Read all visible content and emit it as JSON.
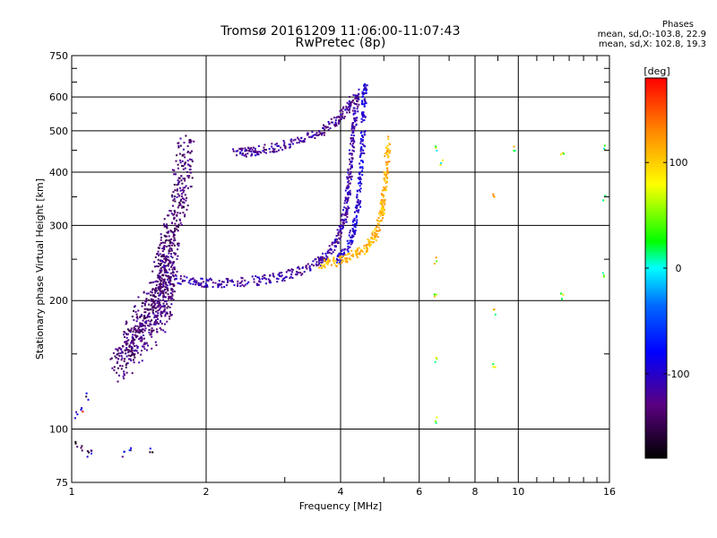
{
  "chart_data": {
    "type": "scatter",
    "title": "Tromsø 20161209 11:06:00-11:07:43",
    "subtitle": "RwPretec (8p)",
    "xlabel": "Frequency [MHz]",
    "ylabel": "Stationary phase Virtual Height [km]",
    "x_scale": "log",
    "y_scale": "log",
    "xlim": [
      1,
      16
    ],
    "ylim": [
      75,
      750
    ],
    "x_ticks": [
      1,
      2,
      4,
      6,
      8,
      10,
      16
    ],
    "y_ticks": [
      75,
      100,
      200,
      300,
      400,
      500,
      600,
      750
    ],
    "grid": true,
    "colorbar": {
      "label": "[deg]",
      "range": [
        -180,
        180
      ],
      "ticks": [
        100,
        0,
        -100
      ]
    },
    "stats_box": {
      "title": "Phases",
      "line_o": "mean, sd,O:-103.8, 22.9",
      "line_x": "mean, sd,X: 102.8, 19.3"
    },
    "traces": [
      {
        "desc": "lower E-F rise",
        "phase": -135,
        "points": [
          [
            1.25,
            140
          ],
          [
            1.3,
            150
          ],
          [
            1.35,
            160
          ],
          [
            1.4,
            170
          ],
          [
            1.45,
            185
          ],
          [
            1.5,
            195
          ],
          [
            1.55,
            210
          ],
          [
            1.58,
            225
          ],
          [
            1.6,
            240
          ],
          [
            1.62,
            255
          ],
          [
            1.65,
            275
          ],
          [
            1.68,
            300
          ],
          [
            1.72,
            340
          ],
          [
            1.75,
            380
          ],
          [
            1.78,
            420
          ],
          [
            1.8,
            460
          ]
        ]
      },
      {
        "desc": "E cusp blob",
        "phase": -130,
        "points": [
          [
            1.3,
            145
          ],
          [
            1.4,
            160
          ],
          [
            1.5,
            175
          ],
          [
            1.55,
            185
          ],
          [
            1.6,
            200
          ],
          [
            1.62,
            215
          ],
          [
            1.64,
            230
          ],
          [
            1.66,
            245
          ]
        ]
      },
      {
        "desc": "F1 O trace",
        "phase": -115,
        "points": [
          [
            1.7,
            225
          ],
          [
            1.9,
            222
          ],
          [
            2.1,
            221
          ],
          [
            2.4,
            222
          ],
          [
            2.7,
            225
          ],
          [
            3.0,
            230
          ],
          [
            3.3,
            238
          ],
          [
            3.6,
            250
          ],
          [
            3.8,
            265
          ],
          [
            3.95,
            285
          ],
          [
            4.05,
            310
          ],
          [
            4.12,
            340
          ],
          [
            4.16,
            380
          ],
          [
            4.2,
            430
          ],
          [
            4.25,
            500
          ],
          [
            4.3,
            560
          ],
          [
            4.35,
            620
          ]
        ]
      },
      {
        "desc": "upper F branch",
        "phase": -120,
        "points": [
          [
            2.3,
            445
          ],
          [
            2.5,
            448
          ],
          [
            2.7,
            455
          ],
          [
            3.0,
            465
          ],
          [
            3.3,
            480
          ],
          [
            3.6,
            500
          ],
          [
            3.9,
            530
          ],
          [
            4.1,
            560
          ],
          [
            4.25,
            600
          ]
        ]
      },
      {
        "desc": "F2 O cusp",
        "phase": -95,
        "points": [
          [
            3.9,
            250
          ],
          [
            4.1,
            265
          ],
          [
            4.25,
            290
          ],
          [
            4.35,
            330
          ],
          [
            4.4,
            380
          ],
          [
            4.45,
            440
          ],
          [
            4.48,
            520
          ],
          [
            4.5,
            600
          ],
          [
            4.52,
            640
          ]
        ]
      },
      {
        "desc": "X trace",
        "phase": 110,
        "points": [
          [
            3.6,
            245
          ],
          [
            3.9,
            248
          ],
          [
            4.2,
            255
          ],
          [
            4.5,
            265
          ],
          [
            4.7,
            280
          ],
          [
            4.85,
            300
          ],
          [
            4.95,
            330
          ],
          [
            5.0,
            370
          ],
          [
            5.05,
            420
          ],
          [
            5.1,
            480
          ]
        ]
      },
      {
        "desc": "low-height echoes",
        "phase": -120,
        "points": [
          [
            1.02,
            92
          ],
          [
            1.05,
            90
          ],
          [
            1.08,
            88
          ],
          [
            1.1,
            89
          ],
          [
            1.3,
            88
          ],
          [
            1.35,
            90
          ],
          [
            1.5,
            89
          ],
          [
            1.02,
            108
          ],
          [
            1.05,
            112
          ],
          [
            1.08,
            120
          ]
        ]
      },
      {
        "desc": "sparse high-frequency echoes",
        "phase": 60,
        "points": [
          [
            6.5,
            460
          ],
          [
            6.5,
            250
          ],
          [
            6.5,
            205
          ],
          [
            6.5,
            145
          ],
          [
            6.5,
            105
          ],
          [
            6.7,
            420
          ],
          [
            8.8,
            350
          ],
          [
            8.8,
            190
          ],
          [
            8.8,
            140
          ],
          [
            9.8,
            460
          ],
          [
            12.5,
            450
          ],
          [
            12.5,
            205
          ],
          [
            15.5,
            460
          ],
          [
            15.5,
            350
          ],
          [
            15.5,
            230
          ]
        ]
      }
    ]
  }
}
